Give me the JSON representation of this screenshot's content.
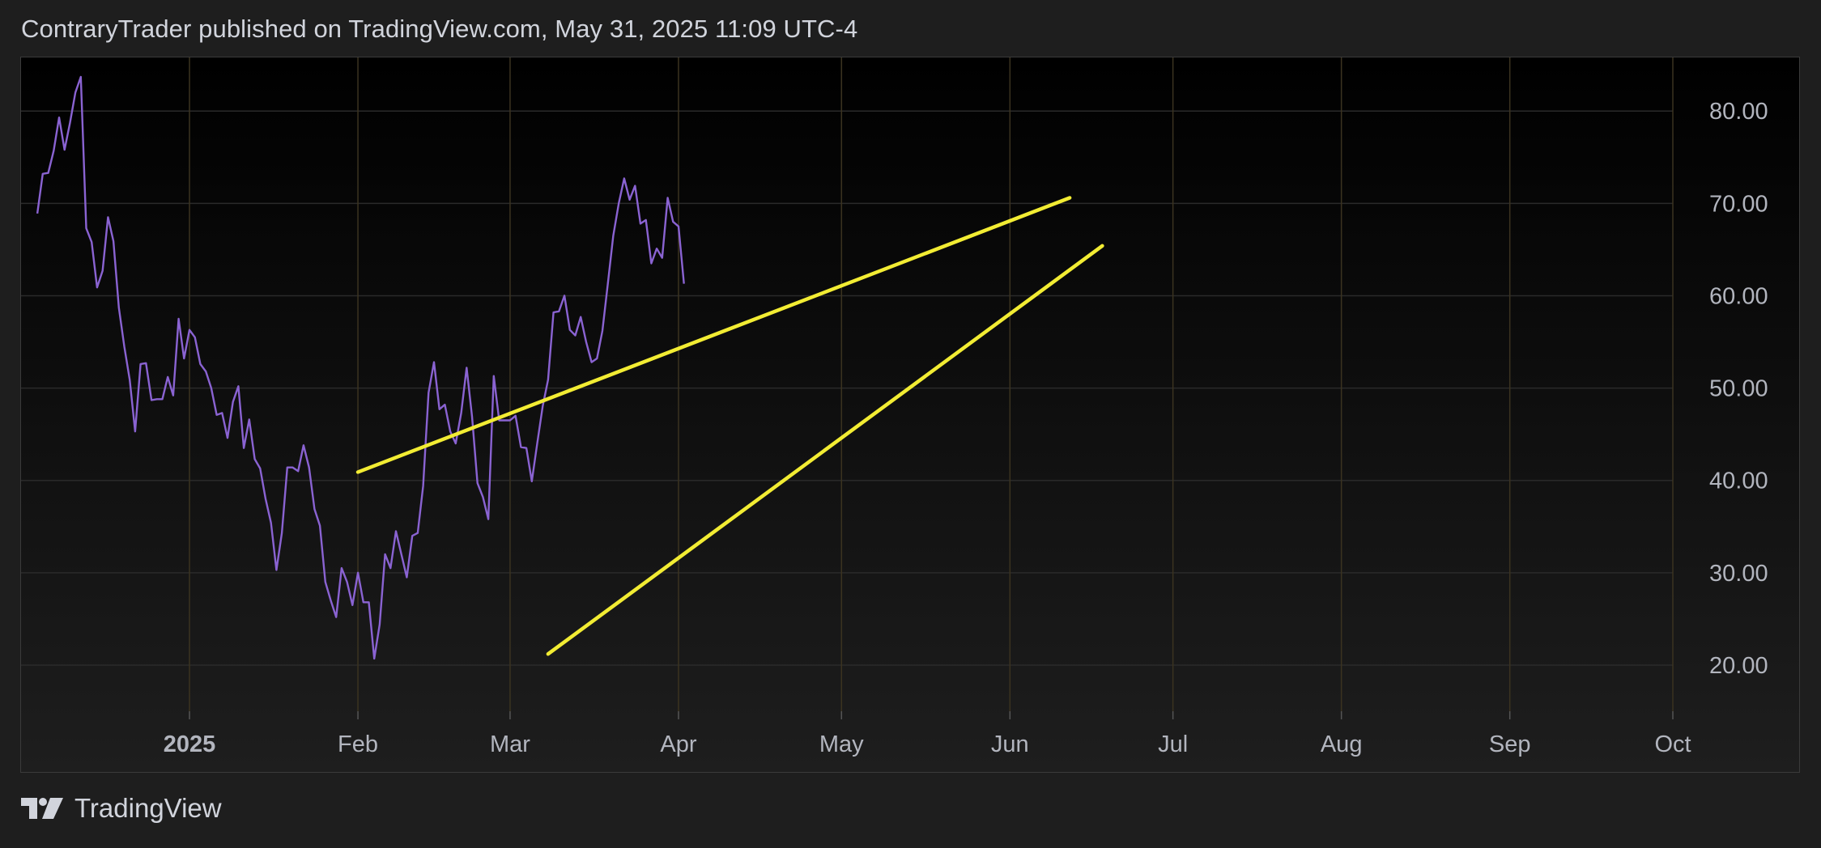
{
  "header": {
    "title": "ContraryTrader published on TradingView.com, May 31, 2025 11:09 UTC-4"
  },
  "footer": {
    "brand": "TradingView",
    "logo_icon": "tradingview-logo-icon"
  },
  "colors": {
    "background": "#1e1e1e",
    "plot_top": "#000000",
    "plot_bottom": "#1e1e1e",
    "series": "#8a63d2",
    "trendline": "#f2ec33",
    "grid": "#2a2a2a",
    "month_grid": "#3b3320",
    "label": "#b2b5be"
  },
  "chart_data": {
    "type": "line",
    "title": "",
    "xlabel": "",
    "ylabel": "",
    "x_range": [
      "2024-12-01",
      "2025-10-01"
    ],
    "ylim": [
      15,
      85.8
    ],
    "y_ticks": [
      20,
      30,
      40,
      50,
      60,
      70,
      80
    ],
    "y_tick_labels": [
      "20.00",
      "30.00",
      "40.00",
      "50.00",
      "60.00",
      "70.00",
      "80.00"
    ],
    "x_ticks": [
      {
        "date": "2025-01-01",
        "label": "2025",
        "bold": true
      },
      {
        "date": "2025-02-01",
        "label": "Feb",
        "bold": false
      },
      {
        "date": "2025-03-01",
        "label": "Mar",
        "bold": false
      },
      {
        "date": "2025-04-01",
        "label": "Apr",
        "bold": false
      },
      {
        "date": "2025-05-01",
        "label": "May",
        "bold": false
      },
      {
        "date": "2025-06-01",
        "label": "Jun",
        "bold": false
      },
      {
        "date": "2025-07-01",
        "label": "Jul",
        "bold": false
      },
      {
        "date": "2025-08-01",
        "label": "Aug",
        "bold": false
      },
      {
        "date": "2025-09-01",
        "label": "Sep",
        "bold": false
      },
      {
        "date": "2025-10-01",
        "label": "Oct",
        "bold": false
      }
    ],
    "grid": true,
    "series": [
      {
        "data": [
          [
            "2024-12-04",
            68.9
          ],
          [
            "2024-12-05",
            73.2
          ],
          [
            "2024-12-06",
            73.3
          ],
          [
            "2024-12-07",
            75.7
          ],
          [
            "2024-12-08",
            79.3
          ],
          [
            "2024-12-09",
            75.8
          ],
          [
            "2024-12-10",
            78.7
          ],
          [
            "2024-12-11",
            82.0
          ],
          [
            "2024-12-12",
            83.7
          ],
          [
            "2024-12-13",
            67.3
          ],
          [
            "2024-12-14",
            65.8
          ],
          [
            "2024-12-15",
            60.9
          ],
          [
            "2024-12-16",
            62.7
          ],
          [
            "2024-12-17",
            68.5
          ],
          [
            "2024-12-18",
            65.9
          ],
          [
            "2024-12-19",
            58.7
          ],
          [
            "2024-12-20",
            54.5
          ],
          [
            "2024-12-21",
            50.9
          ],
          [
            "2024-12-22",
            45.3
          ],
          [
            "2024-12-23",
            52.6
          ],
          [
            "2024-12-24",
            52.7
          ],
          [
            "2024-12-25",
            48.7
          ],
          [
            "2024-12-26",
            48.8
          ],
          [
            "2024-12-27",
            48.8
          ],
          [
            "2024-12-28",
            51.2
          ],
          [
            "2024-12-29",
            49.2
          ],
          [
            "2024-12-30",
            57.5
          ],
          [
            "2024-12-31",
            53.2
          ],
          [
            "2025-01-01",
            56.3
          ],
          [
            "2025-01-02",
            55.5
          ],
          [
            "2025-01-03",
            52.6
          ],
          [
            "2025-01-04",
            51.8
          ],
          [
            "2025-01-05",
            50.0
          ],
          [
            "2025-01-06",
            47.1
          ],
          [
            "2025-01-07",
            47.3
          ],
          [
            "2025-01-08",
            44.6
          ],
          [
            "2025-01-09",
            48.5
          ],
          [
            "2025-01-10",
            50.2
          ],
          [
            "2025-01-11",
            43.5
          ],
          [
            "2025-01-12",
            46.6
          ],
          [
            "2025-01-13",
            42.3
          ],
          [
            "2025-01-14",
            41.3
          ],
          [
            "2025-01-15",
            38.0
          ],
          [
            "2025-01-16",
            35.4
          ],
          [
            "2025-01-17",
            30.3
          ],
          [
            "2025-01-18",
            34.3
          ],
          [
            "2025-01-19",
            41.4
          ],
          [
            "2025-01-20",
            41.4
          ],
          [
            "2025-01-21",
            41.0
          ],
          [
            "2025-01-22",
            43.8
          ],
          [
            "2025-01-23",
            41.4
          ],
          [
            "2025-01-24",
            36.9
          ],
          [
            "2025-01-25",
            35.1
          ],
          [
            "2025-01-26",
            29.0
          ],
          [
            "2025-01-27",
            27.0
          ],
          [
            "2025-01-28",
            25.2
          ],
          [
            "2025-01-29",
            30.5
          ],
          [
            "2025-01-30",
            29.0
          ],
          [
            "2025-01-31",
            26.5
          ],
          [
            "2025-02-01",
            30.0
          ],
          [
            "2025-02-02",
            26.8
          ],
          [
            "2025-02-03",
            26.8
          ],
          [
            "2025-02-04",
            20.7
          ],
          [
            "2025-02-05",
            24.4
          ],
          [
            "2025-02-06",
            32.0
          ],
          [
            "2025-02-07",
            30.5
          ],
          [
            "2025-02-08",
            34.5
          ],
          [
            "2025-02-09",
            32.0
          ],
          [
            "2025-02-10",
            29.5
          ],
          [
            "2025-02-11",
            34.0
          ],
          [
            "2025-02-12",
            34.3
          ],
          [
            "2025-02-13",
            39.4
          ],
          [
            "2025-02-14",
            49.5
          ],
          [
            "2025-02-15",
            52.8
          ],
          [
            "2025-02-16",
            47.7
          ],
          [
            "2025-02-17",
            48.2
          ],
          [
            "2025-02-18",
            45.3
          ],
          [
            "2025-02-19",
            44.0
          ],
          [
            "2025-02-20",
            47.3
          ],
          [
            "2025-02-21",
            52.2
          ],
          [
            "2025-02-22",
            46.9
          ],
          [
            "2025-02-23",
            39.7
          ],
          [
            "2025-02-24",
            38.2
          ],
          [
            "2025-02-25",
            35.8
          ],
          [
            "2025-02-26",
            51.3
          ],
          [
            "2025-02-27",
            46.5
          ],
          [
            "2025-02-28",
            46.5
          ],
          [
            "2025-03-01",
            46.5
          ],
          [
            "2025-03-02",
            47.0
          ],
          [
            "2025-03-03",
            43.6
          ],
          [
            "2025-03-04",
            43.5
          ],
          [
            "2025-03-05",
            39.9
          ],
          [
            "2025-03-06",
            44.0
          ],
          [
            "2025-03-07",
            48.0
          ],
          [
            "2025-03-08",
            50.9
          ],
          [
            "2025-03-09",
            58.2
          ],
          [
            "2025-03-10",
            58.3
          ],
          [
            "2025-03-11",
            60.0
          ],
          [
            "2025-03-12",
            56.3
          ],
          [
            "2025-03-13",
            55.7
          ],
          [
            "2025-03-14",
            57.7
          ],
          [
            "2025-03-15",
            55.0
          ],
          [
            "2025-03-16",
            52.8
          ],
          [
            "2025-03-17",
            53.2
          ],
          [
            "2025-03-18",
            56.2
          ],
          [
            "2025-03-19",
            61.3
          ],
          [
            "2025-03-20",
            66.5
          ],
          [
            "2025-03-21",
            70.0
          ],
          [
            "2025-03-22",
            72.7
          ],
          [
            "2025-03-23",
            70.4
          ],
          [
            "2025-03-24",
            71.9
          ],
          [
            "2025-03-25",
            67.8
          ],
          [
            "2025-03-26",
            68.2
          ],
          [
            "2025-03-27",
            63.5
          ],
          [
            "2025-03-28",
            65.1
          ],
          [
            "2025-03-29",
            64.1
          ],
          [
            "2025-03-30",
            70.6
          ],
          [
            "2025-03-31",
            68.0
          ],
          [
            "2025-04-01",
            67.5
          ],
          [
            "2025-04-02",
            61.3
          ]
        ]
      }
    ],
    "trendlines": [
      {
        "start": [
          "2025-02-01",
          40.9
        ],
        "end": [
          "2025-06-12",
          70.6
        ]
      },
      {
        "start": [
          "2025-03-08",
          21.2
        ],
        "end": [
          "2025-06-18",
          65.4
        ]
      }
    ]
  }
}
